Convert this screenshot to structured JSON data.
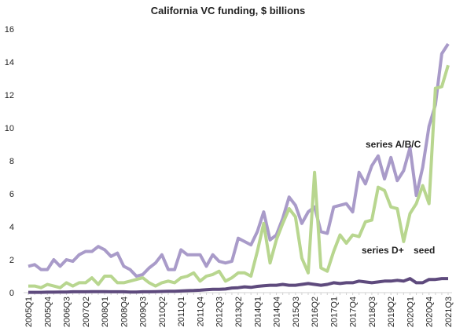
{
  "chart_data": {
    "type": "line",
    "title": "California VC funding, $ billions",
    "categories": [
      "2005Q1",
      null,
      null,
      "2005Q4",
      null,
      null,
      "2006Q3",
      null,
      null,
      "2007Q2",
      null,
      null,
      "2008Q1",
      null,
      null,
      "2008Q4",
      null,
      null,
      "2009Q3",
      null,
      null,
      "2010Q2",
      null,
      null,
      "2011Q1",
      null,
      null,
      "2011Q4",
      null,
      null,
      "2012Q3",
      null,
      null,
      "2013Q2",
      null,
      null,
      "2014Q1",
      null,
      null,
      "2014Q4",
      null,
      null,
      "2015Q3",
      null,
      null,
      "2016Q2",
      null,
      null,
      "2017Q1",
      null,
      null,
      "2017Q4",
      null,
      null,
      "2018Q3",
      null,
      null,
      "2019Q2",
      null,
      null,
      "2020Q1",
      null,
      null,
      "2020Q4",
      null,
      null,
      "2021Q3"
    ],
    "series": [
      {
        "name": "series A/B/C",
        "color": "#a99bc9",
        "values": [
          1.6,
          1.7,
          1.4,
          1.4,
          2.0,
          1.6,
          2.0,
          1.9,
          2.3,
          2.5,
          2.5,
          2.8,
          2.6,
          2.2,
          2.4,
          1.6,
          1.4,
          1.0,
          1.1,
          1.5,
          1.8,
          2.3,
          1.4,
          1.4,
          2.6,
          2.3,
          2.3,
          2.3,
          1.6,
          2.3,
          1.9,
          1.8,
          1.9,
          3.3,
          3.1,
          2.9,
          3.7,
          4.9,
          3.2,
          3.5,
          4.5,
          5.8,
          5.3,
          4.2,
          4.9,
          5.2,
          3.7,
          3.6,
          5.2,
          5.3,
          5.4,
          4.9,
          7.3,
          6.6,
          7.7,
          8.3,
          6.9,
          8.2,
          6.8,
          7.4,
          8.8,
          5.9,
          7.6,
          10.1,
          11.4,
          14.5,
          15.1
        ]
      },
      {
        "name": "series D+",
        "color": "#b8d68f",
        "values": [
          0.4,
          0.4,
          0.3,
          0.5,
          0.4,
          0.3,
          0.6,
          0.4,
          0.6,
          0.6,
          0.9,
          0.5,
          1.0,
          1.0,
          0.6,
          0.6,
          0.7,
          0.8,
          0.9,
          0.6,
          0.4,
          0.6,
          0.7,
          0.6,
          0.9,
          1.0,
          1.2,
          0.7,
          1.0,
          1.1,
          1.3,
          0.7,
          0.9,
          1.2,
          1.2,
          1.0,
          2.5,
          4.2,
          1.8,
          3.2,
          4.2,
          5.1,
          4.6,
          2.1,
          1.2,
          7.3,
          1.5,
          1.3,
          2.5,
          3.5,
          3.0,
          3.5,
          3.4,
          4.3,
          4.4,
          6.4,
          6.2,
          5.2,
          5.1,
          3.1,
          4.8,
          5.4,
          6.5,
          5.4,
          12.4,
          12.5,
          13.8
        ]
      },
      {
        "name": "seed",
        "color": "#5e4a7d",
        "values": [
          0.02,
          0.02,
          0.02,
          0.03,
          0.03,
          0.04,
          0.04,
          0.05,
          0.05,
          0.05,
          0.06,
          0.06,
          0.06,
          0.05,
          0.05,
          0.05,
          0.04,
          0.04,
          0.05,
          0.05,
          0.06,
          0.07,
          0.08,
          0.08,
          0.1,
          0.12,
          0.13,
          0.15,
          0.18,
          0.2,
          0.2,
          0.22,
          0.28,
          0.3,
          0.35,
          0.32,
          0.38,
          0.42,
          0.45,
          0.45,
          0.5,
          0.45,
          0.45,
          0.5,
          0.55,
          0.5,
          0.45,
          0.5,
          0.6,
          0.55,
          0.6,
          0.6,
          0.7,
          0.65,
          0.6,
          0.65,
          0.7,
          0.7,
          0.75,
          0.7,
          0.85,
          0.6,
          0.6,
          0.8,
          0.8,
          0.85,
          0.85
        ]
      }
    ],
    "ylim": [
      0,
      16
    ],
    "yticks": [
      0,
      2,
      4,
      6,
      8,
      10,
      12,
      14,
      16
    ]
  }
}
